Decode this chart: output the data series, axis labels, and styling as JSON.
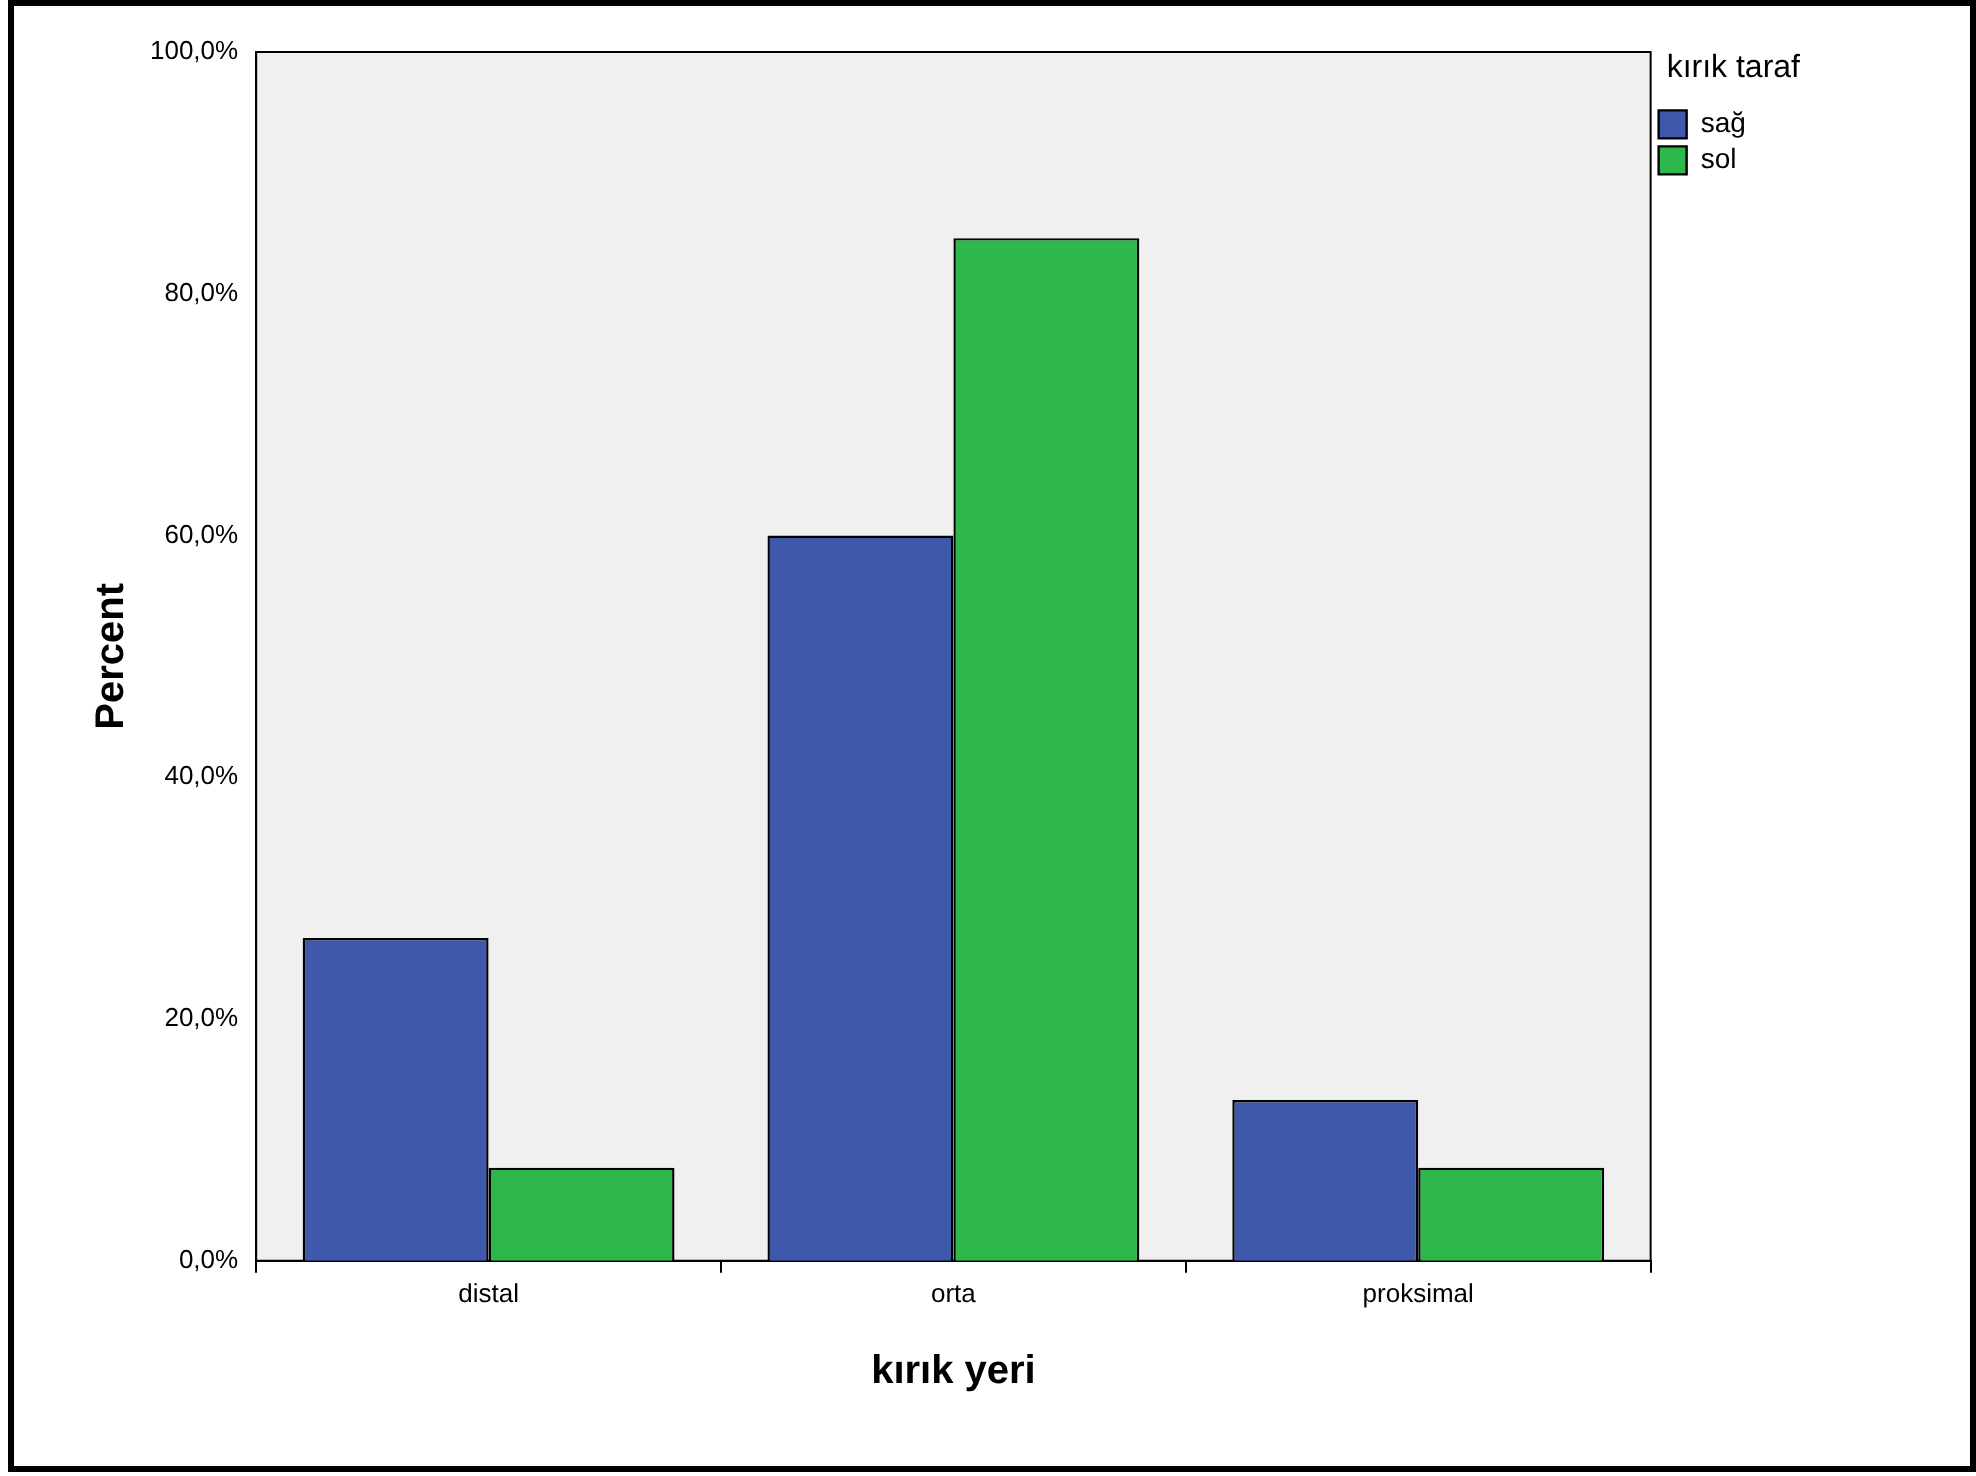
{
  "chart_data": {
    "type": "bar",
    "xlabel": "kırık yeri",
    "ylabel": "Percent",
    "legend_title": "kırık taraf",
    "categories": [
      "distal",
      "orta",
      "proksimal"
    ],
    "series": [
      {
        "name": "sağ",
        "color": "#3e58ac",
        "values": [
          26.7,
          60.0,
          13.3
        ]
      },
      {
        "name": "sol",
        "color": "#2eb84b",
        "values": [
          7.7,
          84.6,
          7.7
        ]
      }
    ],
    "ylim": [
      0,
      100
    ],
    "yticks": [
      {
        "value": 0,
        "label": "0,0%"
      },
      {
        "value": 20,
        "label": "20,0%"
      },
      {
        "value": 40,
        "label": "40,0%"
      },
      {
        "value": 60,
        "label": "60,0%"
      },
      {
        "value": 80,
        "label": "80,0%"
      },
      {
        "value": 100,
        "label": "100,0%"
      }
    ],
    "grid": false,
    "legend": "top right"
  }
}
